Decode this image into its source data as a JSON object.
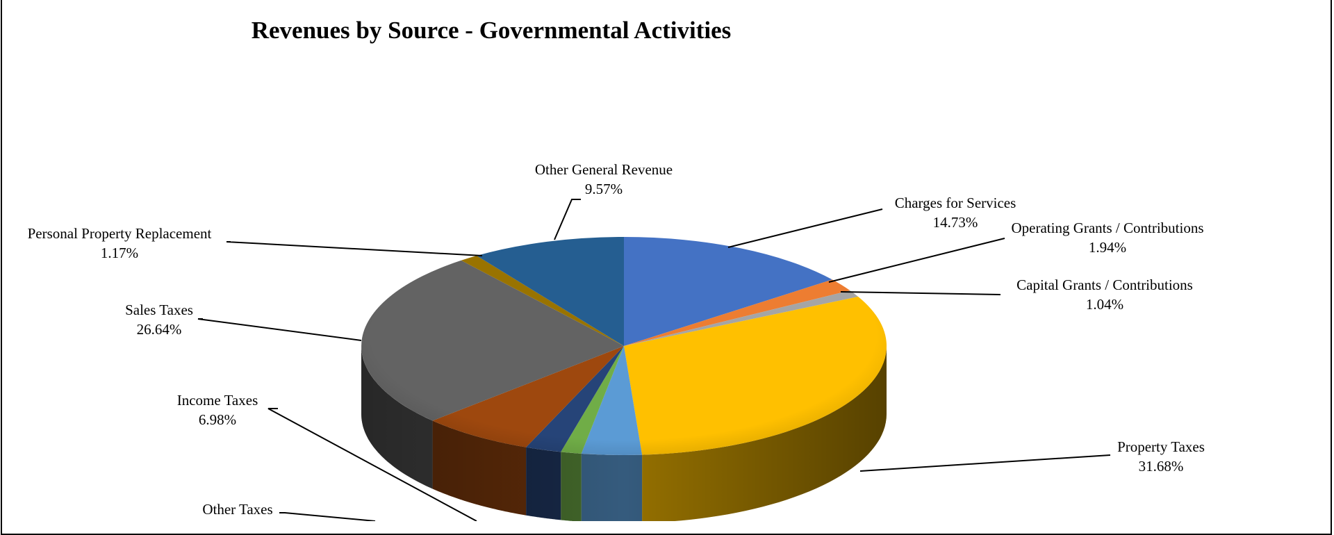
{
  "chart_data": {
    "type": "pie",
    "title": "Revenues by Source - Governmental Activities",
    "slices": [
      {
        "label": "Charges for Services",
        "pct_text": "14.73%",
        "value": 14.73,
        "color": "#4472C4"
      },
      {
        "label": "Operating  Grants / Contributions",
        "pct_text": "1.94%",
        "value": 1.94,
        "color": "#ED7D31"
      },
      {
        "label": "Capital Grants / Contributions",
        "pct_text": "1.04%",
        "value": 1.04,
        "color": "#A5A5A5"
      },
      {
        "label": "Property Taxes",
        "pct_text": "31.68%",
        "value": 31.68,
        "color": "#FFC000"
      },
      {
        "label": "",
        "pct_text": "",
        "value": 3.73,
        "color": "#5B9BD5"
      },
      {
        "label": "",
        "pct_text": "",
        "value": 1.28,
        "color": "#70AD47"
      },
      {
        "label": "",
        "pct_text": "",
        "value": 2.24,
        "color": "#264478"
      },
      {
        "label": "Income Taxes",
        "pct_text": "6.98%",
        "value": 6.98,
        "color": "#9E480E"
      },
      {
        "label": "Sales Taxes",
        "pct_text": "26.64%",
        "value": 26.64,
        "color": "#636363"
      },
      {
        "label": "Personal Property Replacement",
        "pct_text": "1.17%",
        "value": 1.17,
        "color": "#997300"
      },
      {
        "label": "Other General Revenue",
        "pct_text": "9.57%",
        "value": 9.57,
        "color": "#255E91"
      }
    ],
    "partial_labels": [
      {
        "label": "Other Taxes"
      }
    ],
    "legend": "none"
  }
}
